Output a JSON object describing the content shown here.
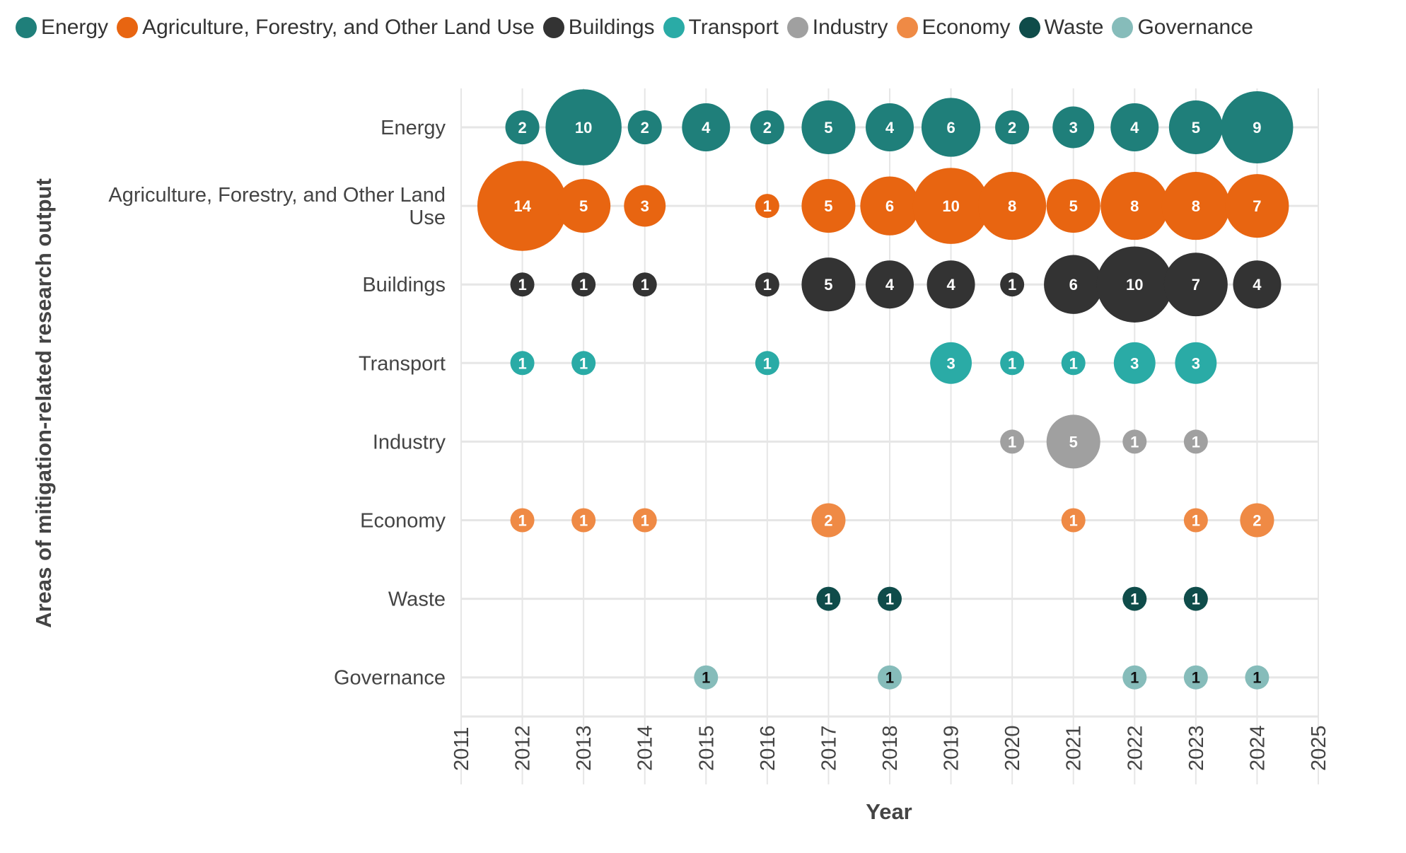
{
  "chart_data": {
    "type": "scatter",
    "subtype": "bubble",
    "xlabel": "Year",
    "ylabel": "Areas of mitigation-related research output",
    "xlim": [
      2011,
      2025
    ],
    "x_ticks": [
      "2011",
      "2012",
      "2013",
      "2014",
      "2015",
      "2016",
      "2017",
      "2018",
      "2019",
      "2020",
      "2021",
      "2022",
      "2023",
      "2024",
      "2025"
    ],
    "grid": true,
    "legend_position": "top",
    "categories": [
      "Energy",
      "Agriculture, Forestry, and Other Land Use",
      "Buildings",
      "Transport",
      "Industry",
      "Economy",
      "Waste",
      "Governance"
    ],
    "category_tick_lines": [
      [
        "Energy"
      ],
      [
        "Agriculture, Forestry, and Other Land",
        "Use"
      ],
      [
        "Buildings"
      ],
      [
        "Transport"
      ],
      [
        "Industry"
      ],
      [
        "Economy"
      ],
      [
        "Waste"
      ],
      [
        "Governance"
      ]
    ],
    "series": [
      {
        "name": "Energy",
        "color": "#1f7f7a",
        "label_color": "#ffffff",
        "points": [
          [
            2012,
            2
          ],
          [
            2013,
            10
          ],
          [
            2014,
            2
          ],
          [
            2015,
            4
          ],
          [
            2016,
            2
          ],
          [
            2017,
            5
          ],
          [
            2018,
            4
          ],
          [
            2019,
            6
          ],
          [
            2020,
            2
          ],
          [
            2021,
            3
          ],
          [
            2022,
            4
          ],
          [
            2023,
            5
          ],
          [
            2024,
            9
          ]
        ]
      },
      {
        "name": "Agriculture, Forestry, and Other Land Use",
        "color": "#e86511",
        "label_color": "#ffffff",
        "points": [
          [
            2012,
            14
          ],
          [
            2013,
            5
          ],
          [
            2014,
            3
          ],
          [
            2016,
            1
          ],
          [
            2017,
            5
          ],
          [
            2018,
            6
          ],
          [
            2019,
            10
          ],
          [
            2020,
            8
          ],
          [
            2021,
            5
          ],
          [
            2022,
            8
          ],
          [
            2023,
            8
          ],
          [
            2024,
            7
          ]
        ]
      },
      {
        "name": "Buildings",
        "color": "#333333",
        "label_color": "#ffffff",
        "points": [
          [
            2012,
            1
          ],
          [
            2013,
            1
          ],
          [
            2014,
            1
          ],
          [
            2016,
            1
          ],
          [
            2017,
            5
          ],
          [
            2018,
            4
          ],
          [
            2019,
            4
          ],
          [
            2020,
            1
          ],
          [
            2021,
            6
          ],
          [
            2022,
            10
          ],
          [
            2023,
            7
          ],
          [
            2024,
            4
          ]
        ]
      },
      {
        "name": "Transport",
        "color": "#2aaba6",
        "label_color": "#ffffff",
        "points": [
          [
            2012,
            1
          ],
          [
            2013,
            1
          ],
          [
            2016,
            1
          ],
          [
            2019,
            3
          ],
          [
            2020,
            1
          ],
          [
            2021,
            1
          ],
          [
            2022,
            3
          ],
          [
            2023,
            3
          ]
        ]
      },
      {
        "name": "Industry",
        "color": "#a0a0a0",
        "label_color": "#ffffff",
        "points": [
          [
            2020,
            1
          ],
          [
            2021,
            5
          ],
          [
            2022,
            1
          ],
          [
            2023,
            1
          ]
        ]
      },
      {
        "name": "Economy",
        "color": "#ef8a45",
        "label_color": "#ffffff",
        "points": [
          [
            2012,
            1
          ],
          [
            2013,
            1
          ],
          [
            2014,
            1
          ],
          [
            2017,
            2
          ],
          [
            2021,
            1
          ],
          [
            2023,
            1
          ],
          [
            2024,
            2
          ]
        ]
      },
      {
        "name": "Waste",
        "color": "#0f4c4a",
        "label_color": "#ffffff",
        "points": [
          [
            2017,
            1
          ],
          [
            2018,
            1
          ],
          [
            2022,
            1
          ],
          [
            2023,
            1
          ]
        ]
      },
      {
        "name": "Governance",
        "color": "#86bcba",
        "label_color": "#111111",
        "points": [
          [
            2015,
            1
          ],
          [
            2018,
            1
          ],
          [
            2022,
            1
          ],
          [
            2023,
            1
          ],
          [
            2024,
            1
          ]
        ]
      }
    ]
  }
}
